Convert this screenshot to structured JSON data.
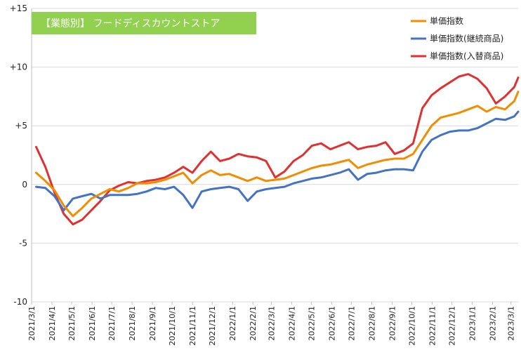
{
  "chart_data": {
    "type": "line",
    "title": "【業態別】 フードディスカウントストア",
    "title_background": "#92d050",
    "ylim": [
      -10,
      15
    ],
    "yticks": [
      {
        "value": 15,
        "label": "+15"
      },
      {
        "value": 10,
        "label": "+10"
      },
      {
        "value": 5,
        "label": "+5"
      },
      {
        "value": 0,
        "label": "0"
      },
      {
        "value": -5,
        "label": "-5"
      },
      {
        "value": -10,
        "label": "-10"
      }
    ],
    "grid": {
      "horizontal": true,
      "vertical": false,
      "color": "#d9d9d9"
    },
    "legend_position": "top-right",
    "x_start": "2021-03-01",
    "x_end": "2023-03-12",
    "xtick_labels": [
      "2021/3/1",
      "2021/4/1",
      "2021/5/1",
      "2021/6/1",
      "2021/7/1",
      "2021/8/1",
      "2021/9/1",
      "2021/10/1",
      "2021/11/1",
      "2021/12/1",
      "2022/1/1",
      "2022/2/1",
      "2022/3/1",
      "2022/4/1",
      "2022/5/1",
      "2022/6/1",
      "2022/7/1",
      "2022/8/1",
      "2022/9/1",
      "2022/10/1",
      "2022/11/1",
      "2022/12/1",
      "2023/1/1",
      "2023/2/1",
      "2023/3/1"
    ],
    "series": [
      {
        "name": "単価指数",
        "color": "#f28c00",
        "points": [
          [
            "2021-03-08",
            1.0
          ],
          [
            "2021-03-22",
            0.3
          ],
          [
            "2021-04-05",
            -0.5
          ],
          [
            "2021-04-19",
            -1.8
          ],
          [
            "2021-05-03",
            -2.7
          ],
          [
            "2021-05-17",
            -2.0
          ],
          [
            "2021-05-31",
            -1.2
          ],
          [
            "2021-06-14",
            -0.8
          ],
          [
            "2021-06-28",
            -0.4
          ],
          [
            "2021-07-12",
            -0.6
          ],
          [
            "2021-07-26",
            -0.3
          ],
          [
            "2021-08-09",
            0.1
          ],
          [
            "2021-08-23",
            0.1
          ],
          [
            "2021-09-06",
            0.2
          ],
          [
            "2021-09-20",
            0.4
          ],
          [
            "2021-10-04",
            0.7
          ],
          [
            "2021-10-18",
            1.0
          ],
          [
            "2021-11-01",
            0.1
          ],
          [
            "2021-11-15",
            0.8
          ],
          [
            "2021-11-29",
            1.2
          ],
          [
            "2021-12-13",
            0.8
          ],
          [
            "2021-12-27",
            0.9
          ],
          [
            "2022-01-10",
            0.6
          ],
          [
            "2022-01-24",
            0.3
          ],
          [
            "2022-02-07",
            0.6
          ],
          [
            "2022-02-21",
            0.3
          ],
          [
            "2022-03-07",
            0.4
          ],
          [
            "2022-03-21",
            0.5
          ],
          [
            "2022-04-04",
            0.8
          ],
          [
            "2022-04-18",
            1.1
          ],
          [
            "2022-05-02",
            1.4
          ],
          [
            "2022-05-16",
            1.6
          ],
          [
            "2022-05-30",
            1.7
          ],
          [
            "2022-06-13",
            1.9
          ],
          [
            "2022-06-27",
            2.1
          ],
          [
            "2022-07-11",
            1.4
          ],
          [
            "2022-07-25",
            1.7
          ],
          [
            "2022-08-08",
            1.9
          ],
          [
            "2022-08-22",
            2.1
          ],
          [
            "2022-09-05",
            2.2
          ],
          [
            "2022-09-19",
            2.2
          ],
          [
            "2022-10-03",
            2.6
          ],
          [
            "2022-10-17",
            3.8
          ],
          [
            "2022-10-31",
            5.0
          ],
          [
            "2022-11-14",
            5.7
          ],
          [
            "2022-11-28",
            5.9
          ],
          [
            "2022-12-12",
            6.1
          ],
          [
            "2022-12-26",
            6.4
          ],
          [
            "2023-01-09",
            6.7
          ],
          [
            "2023-01-23",
            6.2
          ],
          [
            "2023-02-06",
            6.6
          ],
          [
            "2023-02-20",
            6.4
          ],
          [
            "2023-03-06",
            7.1
          ],
          [
            "2023-03-12",
            7.9
          ]
        ]
      },
      {
        "name": "単価指数(継続商品)",
        "color": "#4472c4",
        "points": [
          [
            "2021-03-08",
            -0.2
          ],
          [
            "2021-03-22",
            -0.3
          ],
          [
            "2021-04-05",
            -1.0
          ],
          [
            "2021-04-19",
            -2.2
          ],
          [
            "2021-05-03",
            -1.2
          ],
          [
            "2021-05-17",
            -1.0
          ],
          [
            "2021-05-31",
            -0.8
          ],
          [
            "2021-06-14",
            -1.2
          ],
          [
            "2021-06-28",
            -0.9
          ],
          [
            "2021-07-12",
            -0.9
          ],
          [
            "2021-07-26",
            -0.9
          ],
          [
            "2021-08-09",
            -0.8
          ],
          [
            "2021-08-23",
            -0.6
          ],
          [
            "2021-09-06",
            -0.3
          ],
          [
            "2021-09-20",
            -0.4
          ],
          [
            "2021-10-04",
            -0.2
          ],
          [
            "2021-10-18",
            -0.9
          ],
          [
            "2021-11-01",
            -2.0
          ],
          [
            "2021-11-15",
            -0.6
          ],
          [
            "2021-11-29",
            -0.4
          ],
          [
            "2021-12-13",
            -0.3
          ],
          [
            "2021-12-27",
            -0.2
          ],
          [
            "2022-01-10",
            -0.4
          ],
          [
            "2022-01-24",
            -1.4
          ],
          [
            "2022-02-07",
            -0.6
          ],
          [
            "2022-02-21",
            -0.4
          ],
          [
            "2022-03-07",
            -0.3
          ],
          [
            "2022-03-21",
            -0.2
          ],
          [
            "2022-04-04",
            0.1
          ],
          [
            "2022-04-18",
            0.3
          ],
          [
            "2022-05-02",
            0.5
          ],
          [
            "2022-05-16",
            0.6
          ],
          [
            "2022-05-30",
            0.8
          ],
          [
            "2022-06-13",
            1.0
          ],
          [
            "2022-06-27",
            1.3
          ],
          [
            "2022-07-11",
            0.4
          ],
          [
            "2022-07-25",
            0.9
          ],
          [
            "2022-08-08",
            1.0
          ],
          [
            "2022-08-22",
            1.2
          ],
          [
            "2022-09-05",
            1.3
          ],
          [
            "2022-09-19",
            1.3
          ],
          [
            "2022-10-03",
            1.2
          ],
          [
            "2022-10-17",
            2.8
          ],
          [
            "2022-10-31",
            3.8
          ],
          [
            "2022-11-14",
            4.2
          ],
          [
            "2022-11-28",
            4.5
          ],
          [
            "2022-12-12",
            4.6
          ],
          [
            "2022-12-26",
            4.6
          ],
          [
            "2023-01-09",
            4.8
          ],
          [
            "2023-01-23",
            5.2
          ],
          [
            "2023-02-06",
            5.6
          ],
          [
            "2023-02-20",
            5.5
          ],
          [
            "2023-03-06",
            5.8
          ],
          [
            "2023-03-12",
            6.2
          ]
        ]
      },
      {
        "name": "単価指数(入替商品)",
        "color": "#e03030",
        "points": [
          [
            "2021-03-08",
            3.2
          ],
          [
            "2021-03-22",
            1.5
          ],
          [
            "2021-04-05",
            -0.7
          ],
          [
            "2021-04-19",
            -2.5
          ],
          [
            "2021-05-03",
            -3.4
          ],
          [
            "2021-05-17",
            -3.0
          ],
          [
            "2021-05-31",
            -2.2
          ],
          [
            "2021-06-14",
            -1.4
          ],
          [
            "2021-06-28",
            -0.5
          ],
          [
            "2021-07-12",
            -0.1
          ],
          [
            "2021-07-26",
            0.2
          ],
          [
            "2021-08-09",
            0.1
          ],
          [
            "2021-08-23",
            0.3
          ],
          [
            "2021-09-06",
            0.4
          ],
          [
            "2021-09-20",
            0.6
          ],
          [
            "2021-10-04",
            1.0
          ],
          [
            "2021-10-18",
            1.5
          ],
          [
            "2021-11-01",
            1.0
          ],
          [
            "2021-11-15",
            2.0
          ],
          [
            "2021-11-29",
            2.8
          ],
          [
            "2021-12-13",
            2.0
          ],
          [
            "2021-12-27",
            2.2
          ],
          [
            "2022-01-10",
            2.6
          ],
          [
            "2022-01-24",
            2.4
          ],
          [
            "2022-02-07",
            2.3
          ],
          [
            "2022-02-21",
            2.0
          ],
          [
            "2022-03-07",
            0.6
          ],
          [
            "2022-03-21",
            1.1
          ],
          [
            "2022-04-04",
            2.0
          ],
          [
            "2022-04-18",
            2.5
          ],
          [
            "2022-05-02",
            3.3
          ],
          [
            "2022-05-16",
            3.5
          ],
          [
            "2022-05-30",
            3.0
          ],
          [
            "2022-06-13",
            3.3
          ],
          [
            "2022-06-27",
            3.6
          ],
          [
            "2022-07-11",
            3.0
          ],
          [
            "2022-07-25",
            3.2
          ],
          [
            "2022-08-08",
            3.3
          ],
          [
            "2022-08-22",
            3.6
          ],
          [
            "2022-09-05",
            2.6
          ],
          [
            "2022-09-19",
            2.9
          ],
          [
            "2022-10-03",
            3.5
          ],
          [
            "2022-10-17",
            6.5
          ],
          [
            "2022-10-31",
            7.6
          ],
          [
            "2022-11-14",
            8.2
          ],
          [
            "2022-11-28",
            8.7
          ],
          [
            "2022-12-12",
            9.2
          ],
          [
            "2022-12-26",
            9.4
          ],
          [
            "2023-01-09",
            9.0
          ],
          [
            "2023-01-23",
            8.2
          ],
          [
            "2023-02-06",
            6.9
          ],
          [
            "2023-02-20",
            7.5
          ],
          [
            "2023-03-06",
            8.3
          ],
          [
            "2023-03-12",
            9.1
          ]
        ]
      }
    ]
  }
}
